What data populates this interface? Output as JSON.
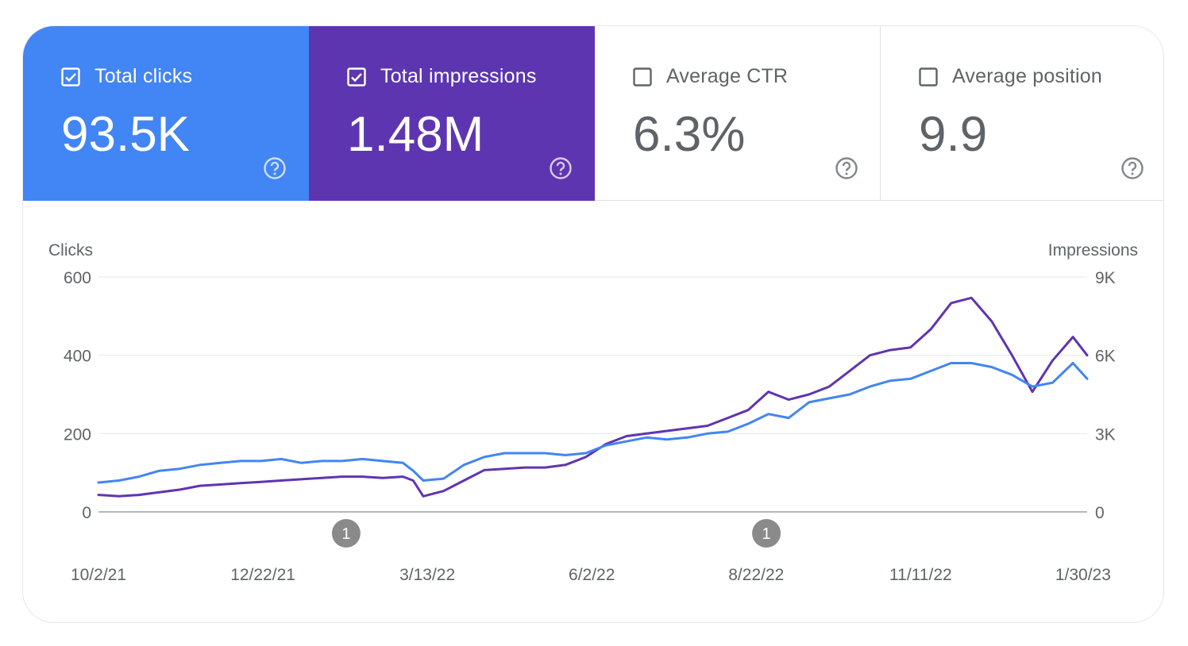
{
  "metrics": {
    "clicks": {
      "label": "Total clicks",
      "value": "93.5K",
      "checked": true,
      "color": "#4285f4"
    },
    "impressions": {
      "label": "Total impressions",
      "value": "1.48M",
      "checked": true,
      "color": "#5e35b1"
    },
    "ctr": {
      "label": "Average CTR",
      "value": "6.3%",
      "checked": false
    },
    "position": {
      "label": "Average position",
      "value": "9.9",
      "checked": false
    }
  },
  "icons": {
    "checkbox_checked": "checkbox-checked-icon",
    "checkbox_empty": "checkbox-empty-icon",
    "help": "help-circle-icon",
    "annotation": "annotation-marker-icon"
  },
  "chart_data": {
    "type": "line",
    "ylabel_left": "Clicks",
    "ylabel_right": "Impressions",
    "y_left_ticks": [
      "600",
      "400",
      "200",
      "0"
    ],
    "y_right_ticks": [
      "9K",
      "6K",
      "3K",
      "0"
    ],
    "ylim_left": [
      0,
      600
    ],
    "ylim_right": [
      0,
      9000
    ],
    "x_tick_labels": [
      "10/2/21",
      "12/22/21",
      "3/13/22",
      "6/2/22",
      "8/22/22",
      "11/11/22",
      "1/30/23"
    ],
    "x_tick_dates": [
      "2021-10-02",
      "2021-12-22",
      "2022-03-13",
      "2022-06-02",
      "2022-08-22",
      "2022-11-11",
      "2023-01-30"
    ],
    "x_range": [
      "2021-10-02",
      "2023-02-01"
    ],
    "grid": true,
    "annotations": [
      {
        "date": "2022-02-01",
        "label": "1"
      },
      {
        "date": "2022-08-27",
        "label": "1"
      }
    ],
    "series": [
      {
        "name": "Clicks",
        "axis": "left",
        "color": "#4285f4",
        "points": [
          [
            "2021-10-02",
            75
          ],
          [
            "2021-10-12",
            80
          ],
          [
            "2021-10-22",
            90
          ],
          [
            "2021-11-01",
            105
          ],
          [
            "2021-11-11",
            110
          ],
          [
            "2021-11-21",
            120
          ],
          [
            "2021-12-01",
            125
          ],
          [
            "2021-12-11",
            130
          ],
          [
            "2021-12-21",
            130
          ],
          [
            "2021-12-31",
            135
          ],
          [
            "2022-01-10",
            125
          ],
          [
            "2022-01-20",
            130
          ],
          [
            "2022-01-30",
            130
          ],
          [
            "2022-02-09",
            135
          ],
          [
            "2022-02-19",
            130
          ],
          [
            "2022-03-01",
            125
          ],
          [
            "2022-03-06",
            105
          ],
          [
            "2022-03-11",
            80
          ],
          [
            "2022-03-21",
            85
          ],
          [
            "2022-03-31",
            120
          ],
          [
            "2022-04-10",
            140
          ],
          [
            "2022-04-20",
            150
          ],
          [
            "2022-04-30",
            150
          ],
          [
            "2022-05-10",
            150
          ],
          [
            "2022-05-20",
            145
          ],
          [
            "2022-05-30",
            150
          ],
          [
            "2022-06-09",
            170
          ],
          [
            "2022-06-19",
            180
          ],
          [
            "2022-06-29",
            190
          ],
          [
            "2022-07-09",
            185
          ],
          [
            "2022-07-19",
            190
          ],
          [
            "2022-07-29",
            200
          ],
          [
            "2022-08-08",
            205
          ],
          [
            "2022-08-18",
            225
          ],
          [
            "2022-08-28",
            250
          ],
          [
            "2022-09-07",
            240
          ],
          [
            "2022-09-17",
            280
          ],
          [
            "2022-09-27",
            290
          ],
          [
            "2022-10-07",
            300
          ],
          [
            "2022-10-17",
            320
          ],
          [
            "2022-10-27",
            335
          ],
          [
            "2022-11-06",
            340
          ],
          [
            "2022-11-16",
            360
          ],
          [
            "2022-11-26",
            380
          ],
          [
            "2022-12-06",
            380
          ],
          [
            "2022-12-16",
            370
          ],
          [
            "2022-12-26",
            350
          ],
          [
            "2023-01-05",
            320
          ],
          [
            "2023-01-15",
            330
          ],
          [
            "2023-01-25",
            380
          ],
          [
            "2023-02-01",
            340
          ]
        ]
      },
      {
        "name": "Impressions",
        "axis": "right",
        "color": "#5e35b1",
        "points": [
          [
            "2021-10-02",
            650
          ],
          [
            "2021-10-12",
            600
          ],
          [
            "2021-10-22",
            650
          ],
          [
            "2021-11-01",
            750
          ],
          [
            "2021-11-11",
            850
          ],
          [
            "2021-11-21",
            1000
          ],
          [
            "2021-12-01",
            1050
          ],
          [
            "2021-12-11",
            1100
          ],
          [
            "2021-12-21",
            1150
          ],
          [
            "2021-12-31",
            1200
          ],
          [
            "2022-01-10",
            1250
          ],
          [
            "2022-01-20",
            1300
          ],
          [
            "2022-01-30",
            1350
          ],
          [
            "2022-02-09",
            1350
          ],
          [
            "2022-02-19",
            1300
          ],
          [
            "2022-03-01",
            1350
          ],
          [
            "2022-03-06",
            1200
          ],
          [
            "2022-03-11",
            600
          ],
          [
            "2022-03-21",
            800
          ],
          [
            "2022-03-31",
            1200
          ],
          [
            "2022-04-10",
            1600
          ],
          [
            "2022-04-20",
            1650
          ],
          [
            "2022-04-30",
            1700
          ],
          [
            "2022-05-10",
            1700
          ],
          [
            "2022-05-20",
            1800
          ],
          [
            "2022-05-30",
            2100
          ],
          [
            "2022-06-09",
            2600
          ],
          [
            "2022-06-19",
            2900
          ],
          [
            "2022-06-29",
            3000
          ],
          [
            "2022-07-09",
            3100
          ],
          [
            "2022-07-19",
            3200
          ],
          [
            "2022-07-29",
            3300
          ],
          [
            "2022-08-08",
            3600
          ],
          [
            "2022-08-18",
            3900
          ],
          [
            "2022-08-28",
            4600
          ],
          [
            "2022-09-07",
            4300
          ],
          [
            "2022-09-17",
            4500
          ],
          [
            "2022-09-27",
            4800
          ],
          [
            "2022-10-07",
            5400
          ],
          [
            "2022-10-17",
            6000
          ],
          [
            "2022-10-27",
            6200
          ],
          [
            "2022-11-06",
            6300
          ],
          [
            "2022-11-16",
            7000
          ],
          [
            "2022-11-26",
            8000
          ],
          [
            "2022-12-06",
            8200
          ],
          [
            "2022-12-16",
            7300
          ],
          [
            "2022-12-26",
            6000
          ],
          [
            "2023-01-05",
            4600
          ],
          [
            "2023-01-15",
            5800
          ],
          [
            "2023-01-25",
            6700
          ],
          [
            "2023-02-01",
            6000
          ]
        ]
      }
    ]
  }
}
